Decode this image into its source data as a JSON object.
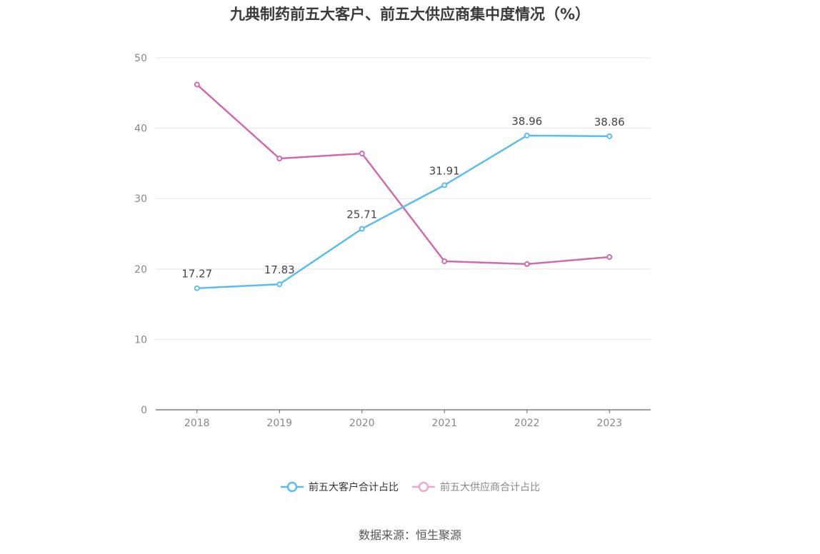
{
  "title": "九典制药前五大客户、前五大供应商集中度情况（%）",
  "source": "数据来源：恒生聚源",
  "colors": {
    "customers": "#5bbcef",
    "suppliers": "#d06aae",
    "suppliers_legend": "#e9a9d3",
    "grid": "#e6e6e6",
    "axis": "#666666",
    "tick_text": "#888888"
  },
  "chart_data": {
    "type": "line",
    "title": "九典制药前五大客户、前五大供应商集中度情况（%）",
    "categories": [
      "2018",
      "2019",
      "2020",
      "2021",
      "2022",
      "2023"
    ],
    "ylim": [
      0,
      50
    ],
    "yticks": [
      0,
      10,
      20,
      30,
      40,
      50
    ],
    "grid": true,
    "legend_position": "bottom",
    "series": [
      {
        "name": "前五大客户合计占比",
        "values": [
          17.27,
          17.83,
          25.71,
          31.91,
          38.96,
          38.86
        ],
        "labels": [
          "17.27",
          "17.83",
          "25.71",
          "31.91",
          "38.96",
          "38.86"
        ]
      },
      {
        "name": "前五大供应商合计占比",
        "values": [
          46.2,
          35.7,
          36.4,
          21.1,
          20.7,
          21.7
        ]
      }
    ]
  }
}
